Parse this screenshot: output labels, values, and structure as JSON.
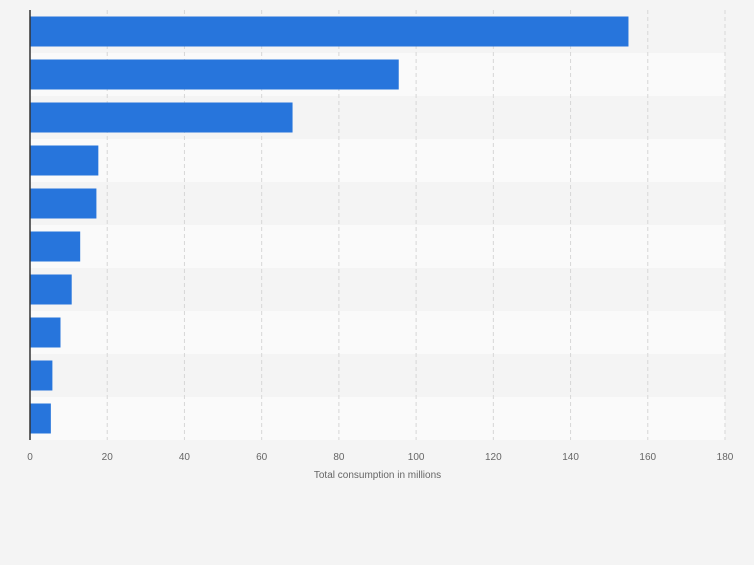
{
  "chart_data": {
    "type": "bar",
    "orientation": "horizontal",
    "title": "",
    "xlabel": "Total consumption in millions",
    "ylabel": "",
    "categories": [
      "",
      "",
      "",
      "",
      "",
      "",
      "",
      "",
      "",
      ""
    ],
    "values": [
      155,
      95.5,
      68,
      17.7,
      17.2,
      13,
      10.8,
      7.9,
      5.8,
      5.4
    ],
    "xlim": [
      0,
      180
    ],
    "xticks": [
      0,
      20,
      40,
      60,
      80,
      100,
      120,
      140,
      160,
      180
    ],
    "grid": true,
    "legend": "none",
    "colors": {
      "bar": "#2775dc",
      "background": "#f4f4f4",
      "band_dark": "#f4f4f4",
      "band_light": "#fafafa",
      "grid": "#d7d7d7",
      "axis": "#333333",
      "text": "#666666"
    }
  }
}
